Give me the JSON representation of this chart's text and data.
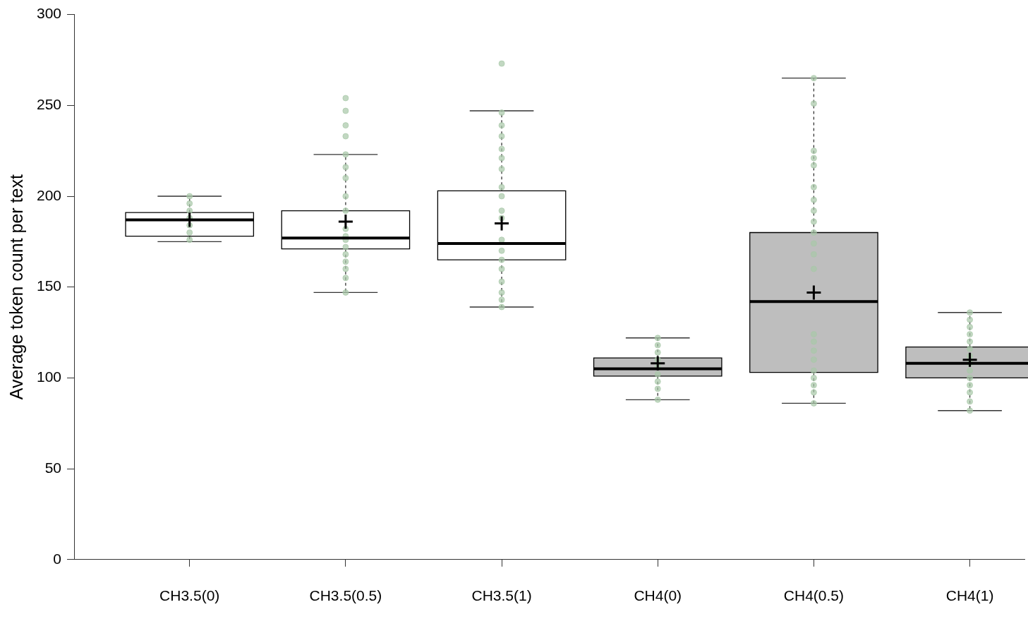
{
  "chart_data": {
    "type": "box",
    "ylabel": "Average token count per text",
    "categories": [
      "CH3.5(0)",
      "CH3.5(0.5)",
      "CH3.5(1)",
      "CH4(0)",
      "CH4(0.5)",
      "CH4(1)"
    ],
    "colors": [
      "#ffffff",
      "#ffffff",
      "#ffffff",
      "#bebebe",
      "#bebebe",
      "#bebebe"
    ],
    "boxes": [
      {
        "low": 175,
        "q1": 178,
        "median": 187,
        "q3": 191,
        "high": 200,
        "mean": 187
      },
      {
        "low": 147,
        "q1": 171,
        "median": 177,
        "q3": 192,
        "high": 223,
        "mean": 186
      },
      {
        "low": 139,
        "q1": 165,
        "median": 174,
        "q3": 203,
        "high": 247,
        "mean": 185
      },
      {
        "low": 88,
        "q1": 101,
        "median": 105,
        "q3": 111,
        "high": 122,
        "mean": 108
      },
      {
        "low": 86,
        "q1": 103,
        "median": 142,
        "q3": 180,
        "high": 265,
        "mean": 147
      },
      {
        "low": 82,
        "q1": 100,
        "median": 108,
        "q3": 117,
        "high": 136,
        "mean": 110
      }
    ],
    "series": [
      {
        "type": "scatter",
        "color": "#a8c8a8",
        "x": [
          "CH3.5(0)",
          "CH3.5(0)",
          "CH3.5(0)",
          "CH3.5(0)",
          "CH3.5(0)",
          "CH3.5(0)",
          "CH3.5(0)",
          "CH3.5(0.5)",
          "CH3.5(0.5)",
          "CH3.5(0.5)",
          "CH3.5(0.5)",
          "CH3.5(0.5)",
          "CH3.5(0.5)",
          "CH3.5(0.5)",
          "CH3.5(0.5)",
          "CH3.5(0.5)",
          "CH3.5(0.5)",
          "CH3.5(0.5)",
          "CH3.5(0.5)",
          "CH3.5(0.5)",
          "CH3.5(0.5)",
          "CH3.5(0.5)",
          "CH3.5(0.5)",
          "CH3.5(0.5)",
          "CH3.5(0.5)",
          "CH3.5(1)",
          "CH3.5(1)",
          "CH3.5(1)",
          "CH3.5(1)",
          "CH3.5(1)",
          "CH3.5(1)",
          "CH3.5(1)",
          "CH3.5(1)",
          "CH3.5(1)",
          "CH3.5(1)",
          "CH3.5(1)",
          "CH3.5(1)",
          "CH3.5(1)",
          "CH3.5(1)",
          "CH3.5(1)",
          "CH3.5(1)",
          "CH3.5(1)",
          "CH3.5(1)",
          "CH3.5(1)",
          "CH4(0)",
          "CH4(0)",
          "CH4(0)",
          "CH4(0)",
          "CH4(0)",
          "CH4(0)",
          "CH4(0)",
          "CH4(0)",
          "CH4(0)",
          "CH4(0.5)",
          "CH4(0.5)",
          "CH4(0.5)",
          "CH4(0.5)",
          "CH4(0.5)",
          "CH4(0.5)",
          "CH4(0.5)",
          "CH4(0.5)",
          "CH4(0.5)",
          "CH4(0.5)",
          "CH4(0.5)",
          "CH4(0.5)",
          "CH4(0.5)",
          "CH4(0.5)",
          "CH4(0.5)",
          "CH4(0.5)",
          "CH4(0.5)",
          "CH4(0.5)",
          "CH4(0.5)",
          "CH4(0.5)",
          "CH4(0.5)",
          "CH4(0.5)",
          "CH4(1)",
          "CH4(1)",
          "CH4(1)",
          "CH4(1)",
          "CH4(1)",
          "CH4(1)",
          "CH4(1)",
          "CH4(1)",
          "CH4(1)",
          "CH4(1)",
          "CH4(1)",
          "CH4(1)",
          "CH4(1)",
          "CH4(1)"
        ],
        "values": [
          200,
          196,
          192,
          188,
          184,
          180,
          176,
          254,
          247,
          239,
          233,
          223,
          216,
          210,
          200,
          192,
          182,
          178,
          176,
          172,
          168,
          164,
          160,
          155,
          147,
          273,
          246,
          239,
          233,
          226,
          221,
          215,
          205,
          200,
          192,
          188,
          176,
          170,
          165,
          160,
          153,
          147,
          143,
          139,
          122,
          118,
          114,
          110,
          106,
          102,
          98,
          94,
          88,
          265,
          251,
          225,
          221,
          217,
          205,
          198,
          192,
          186,
          180,
          174,
          168,
          160,
          124,
          120,
          115,
          110,
          104,
          100,
          96,
          92,
          86,
          136,
          132,
          128,
          124,
          120,
          116,
          112,
          108,
          104,
          100,
          96,
          92,
          87,
          82
        ]
      }
    ],
    "ylim": [
      0,
      300
    ],
    "yticks": [
      0,
      50,
      100,
      150,
      200,
      250,
      300
    ],
    "grid": false,
    "legend": false,
    "marker": "circle"
  }
}
